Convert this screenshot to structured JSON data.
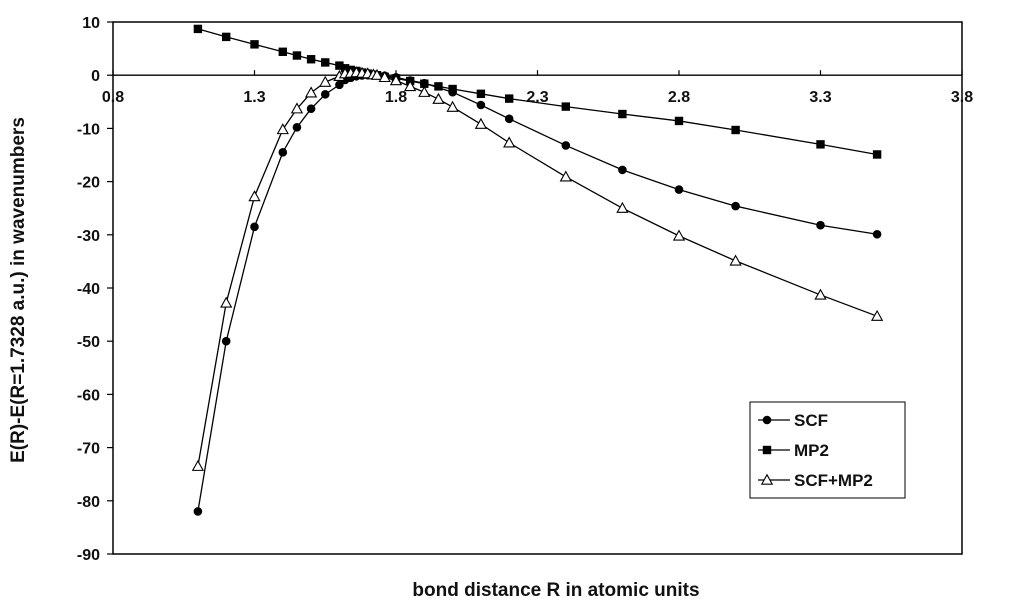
{
  "chart_data": {
    "type": "line",
    "title": "",
    "xlabel": "bond distance R in atomic units",
    "ylabel": "E(R)-E(R=1.7328 a.u.) in wavenumbers",
    "xlim": [
      0.8,
      3.8
    ],
    "ylim": [
      -90,
      10
    ],
    "x_ticks": [
      "0.8",
      "1.3",
      "1.8",
      "2.3",
      "2.8",
      "3.3",
      "3.8"
    ],
    "y_ticks": [
      "10",
      "0",
      "-10",
      "-20",
      "-30",
      "-40",
      "-50",
      "-60",
      "-70",
      "-80",
      "-90"
    ],
    "grid": false,
    "legend_position": "bottom-right",
    "series": [
      {
        "name": "SCF",
        "marker": "circle",
        "x": [
          1.1,
          1.2,
          1.3,
          1.4,
          1.45,
          1.5,
          1.55,
          1.6,
          1.62,
          1.64,
          1.66,
          1.68,
          1.7,
          1.72,
          1.7328,
          1.76,
          1.8,
          1.85,
          1.9,
          2.0,
          2.1,
          2.2,
          2.4,
          2.6,
          2.8,
          3.0,
          3.3,
          3.5
        ],
        "y": [
          -82,
          -50,
          -28.5,
          -14.5,
          -9.8,
          -6.3,
          -3.6,
          -1.8,
          -0.9,
          -0.5,
          -0.2,
          -0.05,
          0,
          0,
          0,
          -0.1,
          -0.4,
          -1.0,
          -1.5,
          -3.2,
          -5.6,
          -8.2,
          -13.2,
          -17.8,
          -21.5,
          -24.6,
          -28.2,
          -29.9
        ]
      },
      {
        "name": "MP2",
        "marker": "square",
        "x": [
          1.1,
          1.2,
          1.3,
          1.4,
          1.45,
          1.5,
          1.55,
          1.6,
          1.62,
          1.64,
          1.66,
          1.68,
          1.7,
          1.72,
          1.7328,
          1.76,
          1.8,
          1.85,
          1.9,
          1.95,
          2.0,
          2.1,
          2.2,
          2.4,
          2.6,
          2.8,
          3.0,
          3.3,
          3.5
        ],
        "y": [
          8.7,
          7.2,
          5.8,
          4.4,
          3.7,
          3.0,
          2.4,
          1.8,
          1.3,
          1.0,
          0.8,
          0.5,
          0.3,
          0.1,
          0,
          -0.3,
          -0.6,
          -1.1,
          -1.6,
          -2.1,
          -2.6,
          -3.5,
          -4.4,
          -5.9,
          -7.3,
          -8.6,
          -10.3,
          -13.0,
          -14.9
        ]
      },
      {
        "name": "SCF+MP2",
        "marker": "triangle",
        "x": [
          1.1,
          1.2,
          1.3,
          1.4,
          1.45,
          1.5,
          1.55,
          1.6,
          1.62,
          1.64,
          1.66,
          1.68,
          1.7,
          1.72,
          1.7328,
          1.76,
          1.8,
          1.85,
          1.9,
          1.95,
          2.0,
          2.1,
          2.2,
          2.4,
          2.6,
          2.8,
          3.0,
          3.3,
          3.5
        ],
        "y": [
          -73.5,
          -42.8,
          -22.8,
          -10.2,
          -6.3,
          -3.3,
          -1.3,
          -0.2,
          0.3,
          0.4,
          0.5,
          0.4,
          0.3,
          0.1,
          0,
          -0.4,
          -1.0,
          -2.1,
          -3.2,
          -4.5,
          -6.0,
          -9.2,
          -12.7,
          -19.1,
          -25.0,
          -30.2,
          -34.9,
          -41.3,
          -45.3
        ]
      }
    ]
  }
}
